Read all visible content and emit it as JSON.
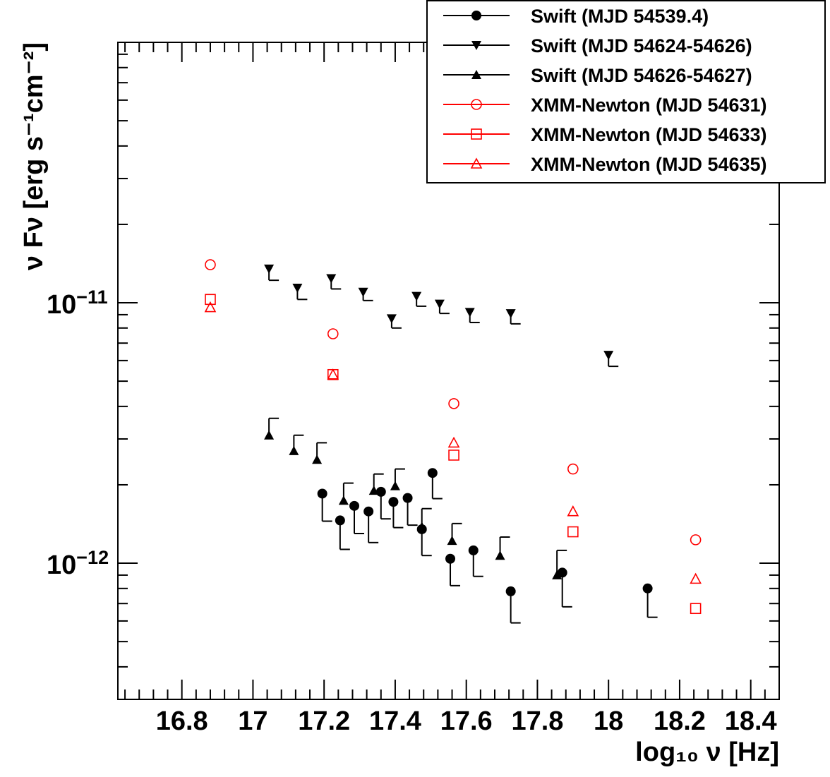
{
  "chart_data": {
    "type": "scatter",
    "title": "",
    "xlabel": "log₁₀ ν [Hz]",
    "ylabel": "ν Fν [erg s⁻¹cm⁻²]",
    "x_scale": "linear",
    "y_scale": "log",
    "xlim": [
      16.62,
      18.48
    ],
    "ylim": [
      3e-13,
      1e-10
    ],
    "x_ticks": [
      "16.8",
      "17",
      "17.2",
      "17.4",
      "17.6",
      "17.8",
      "18",
      "18.2",
      "18.4"
    ],
    "y_tick_labels": [
      {
        "value": 1e-11,
        "base": "10",
        "exp": "−11"
      },
      {
        "value": 1e-12,
        "base": "10",
        "exp": "−12"
      }
    ],
    "grid": false,
    "legend_position": "top-right",
    "series": [
      {
        "name": "Swift (MJD 54539.4)",
        "color": "#000000",
        "marker": "filled-circle",
        "error": "lower",
        "points": [
          {
            "x": 17.195,
            "y": 1.85e-12,
            "lo": 1.45e-12
          },
          {
            "x": 17.245,
            "y": 1.46e-12,
            "lo": 1.13e-12
          },
          {
            "x": 17.285,
            "y": 1.66e-12,
            "lo": 1.3e-12
          },
          {
            "x": 17.325,
            "y": 1.58e-12,
            "lo": 1.2e-12
          },
          {
            "x": 17.36,
            "y": 1.88e-12,
            "lo": 1.48e-12
          },
          {
            "x": 17.395,
            "y": 1.72e-12,
            "lo": 1.37e-12
          },
          {
            "x": 17.435,
            "y": 1.78e-12,
            "lo": 1.4e-12
          },
          {
            "x": 17.475,
            "y": 1.35e-12,
            "lo": 1.07e-12
          },
          {
            "x": 17.505,
            "y": 2.22e-12,
            "lo": 1.77e-12
          },
          {
            "x": 17.555,
            "y": 1.04e-12,
            "lo": 8.2e-13
          },
          {
            "x": 17.62,
            "y": 1.12e-12,
            "lo": 8.9e-13
          },
          {
            "x": 17.725,
            "y": 7.8e-13,
            "lo": 5.9e-13
          },
          {
            "x": 17.87,
            "y": 9.2e-13,
            "lo": 6.8e-13
          },
          {
            "x": 18.11,
            "y": 8e-13,
            "lo": 6.2e-13
          }
        ]
      },
      {
        "name": "Swift (MJD 54624-54626)",
        "color": "#000000",
        "marker": "filled-triangle-down",
        "error": "lower",
        "points": [
          {
            "x": 17.045,
            "y": 1.35e-11,
            "lo": 1.22e-11
          },
          {
            "x": 17.125,
            "y": 1.14e-11,
            "lo": 1.03e-11
          },
          {
            "x": 17.22,
            "y": 1.24e-11,
            "lo": 1.13e-11
          },
          {
            "x": 17.31,
            "y": 1.1e-11,
            "lo": 1.02e-11
          },
          {
            "x": 17.39,
            "y": 8.7e-12,
            "lo": 8e-12
          },
          {
            "x": 17.46,
            "y": 1.06e-11,
            "lo": 9.7e-12
          },
          {
            "x": 17.525,
            "y": 9.9e-12,
            "lo": 9.1e-12
          },
          {
            "x": 17.61,
            "y": 9.2e-12,
            "lo": 8.4e-12
          },
          {
            "x": 17.725,
            "y": 9.1e-12,
            "lo": 8.3e-12
          },
          {
            "x": 18.0,
            "y": 6.3e-12,
            "lo": 5.7e-12
          }
        ]
      },
      {
        "name": "Swift (MJD 54626-54627)",
        "color": "#000000",
        "marker": "filled-triangle-up",
        "error": "upper",
        "points": [
          {
            "x": 17.045,
            "y": 3.1e-12,
            "hi": 3.6e-12
          },
          {
            "x": 17.115,
            "y": 2.7e-12,
            "hi": 3.1e-12
          },
          {
            "x": 17.18,
            "y": 2.5e-12,
            "hi": 2.9e-12
          },
          {
            "x": 17.255,
            "y": 1.74e-12,
            "hi": 2.03e-12
          },
          {
            "x": 17.34,
            "y": 1.9e-12,
            "hi": 2.2e-12
          },
          {
            "x": 17.4,
            "y": 1.98e-12,
            "hi": 2.3e-12
          },
          {
            "x": 17.475,
            "y": 1.38e-12,
            "hi": 1.62e-12
          },
          {
            "x": 17.56,
            "y": 1.22e-12,
            "hi": 1.42e-12
          },
          {
            "x": 17.695,
            "y": 1.07e-12,
            "hi": 1.26e-12
          },
          {
            "x": 17.855,
            "y": 9e-13,
            "hi": 1.12e-12
          }
        ]
      },
      {
        "name": "XMM-Newton (MJD 54631)",
        "color": "#ff0000",
        "marker": "open-circle",
        "error": "none",
        "points": [
          {
            "x": 16.88,
            "y": 1.4e-11
          },
          {
            "x": 17.225,
            "y": 7.6e-12
          },
          {
            "x": 17.565,
            "y": 4.1e-12
          },
          {
            "x": 17.9,
            "y": 2.3e-12
          },
          {
            "x": 18.245,
            "y": 1.23e-12
          }
        ]
      },
      {
        "name": "XMM-Newton (MJD 54633)",
        "color": "#ff0000",
        "marker": "open-square",
        "error": "none",
        "points": [
          {
            "x": 16.88,
            "y": 1.03e-11
          },
          {
            "x": 17.225,
            "y": 5.3e-12
          },
          {
            "x": 17.565,
            "y": 2.6e-12
          },
          {
            "x": 17.9,
            "y": 1.32e-12
          },
          {
            "x": 18.245,
            "y": 6.7e-13
          }
        ]
      },
      {
        "name": "XMM-Newton (MJD 54635)",
        "color": "#ff0000",
        "marker": "open-triangle-up",
        "error": "none",
        "points": [
          {
            "x": 16.88,
            "y": 9.6e-12
          },
          {
            "x": 17.225,
            "y": 5.3e-12
          },
          {
            "x": 17.565,
            "y": 2.9e-12
          },
          {
            "x": 17.9,
            "y": 1.58e-12
          },
          {
            "x": 18.245,
            "y": 8.7e-13
          }
        ]
      }
    ]
  }
}
